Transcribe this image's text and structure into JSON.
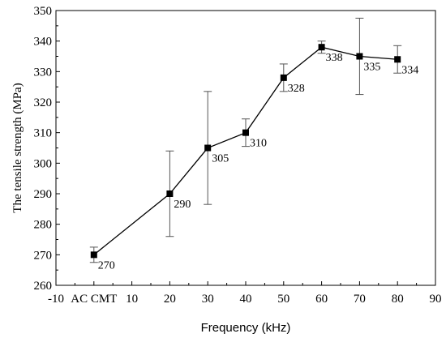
{
  "chart_data": {
    "type": "line",
    "xlabel": "Frequency (kHz)",
    "ylabel": "The tensile strength (MPa)",
    "xlim": [
      -10,
      90
    ],
    "ylim": [
      260,
      350
    ],
    "x_ticks": [
      {
        "value": -10,
        "label": "-10"
      },
      {
        "value": 0,
        "label": "AC CMT"
      },
      {
        "value": 10,
        "label": "10"
      },
      {
        "value": 20,
        "label": "20"
      },
      {
        "value": 30,
        "label": "30"
      },
      {
        "value": 40,
        "label": "40"
      },
      {
        "value": 50,
        "label": "50"
      },
      {
        "value": 60,
        "label": "60"
      },
      {
        "value": 70,
        "label": "70"
      },
      {
        "value": 80,
        "label": "80"
      },
      {
        "value": 90,
        "label": "90"
      }
    ],
    "y_ticks": [
      260,
      270,
      280,
      290,
      300,
      310,
      320,
      330,
      340,
      350
    ],
    "series": [
      {
        "points": [
          {
            "x": 0,
            "y": 270,
            "err_low": 267.5,
            "err_high": 272.5,
            "label": "270"
          },
          {
            "x": 20,
            "y": 290,
            "err_low": 276,
            "err_high": 304,
            "label": "290"
          },
          {
            "x": 30,
            "y": 305,
            "err_low": 286.5,
            "err_high": 323.5,
            "label": "305"
          },
          {
            "x": 40,
            "y": 310,
            "err_low": 305.5,
            "err_high": 314.5,
            "label": "310"
          },
          {
            "x": 50,
            "y": 328,
            "err_low": 323.5,
            "err_high": 332.5,
            "label": "328"
          },
          {
            "x": 60,
            "y": 338,
            "err_low": 336,
            "err_high": 340,
            "label": "338"
          },
          {
            "x": 70,
            "y": 335,
            "err_low": 322.5,
            "err_high": 347.5,
            "label": "335"
          },
          {
            "x": 80,
            "y": 334,
            "err_low": 329.5,
            "err_high": 338.5,
            "label": "334"
          }
        ],
        "marker": "square",
        "color": "#000000"
      }
    ],
    "grid": false,
    "legend": "none"
  }
}
